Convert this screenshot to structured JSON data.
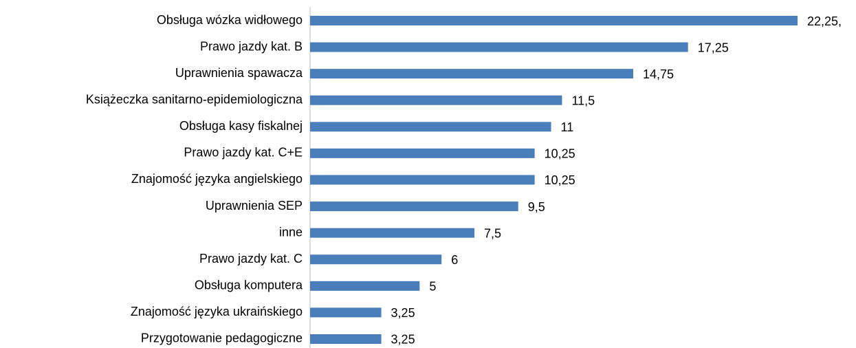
{
  "chart_data": {
    "type": "bar",
    "orientation": "horizontal",
    "categories": [
      "Obsługa wózka widłowego",
      "Prawo jazdy kat. B",
      "Uprawnienia spawacza",
      "Książeczka sanitarno-epidemiologiczna",
      "Obsługa kasy fiskalnej",
      "Prawo jazdy kat. C+E",
      "Znajomość języka angielskiego",
      "Uprawnienia SEP",
      "inne",
      "Prawo jazdy kat. C",
      "Obsługa komputera",
      "Znajomość języka ukraińskiego",
      "Przygotowanie pedagogiczne"
    ],
    "values": [
      22.25,
      17.25,
      14.75,
      11.5,
      11,
      10.25,
      10.25,
      9.5,
      7.5,
      6,
      5,
      3.25,
      3.25
    ],
    "value_labels": [
      "22,25,",
      "17,25",
      "14,75",
      "11,5",
      "11",
      "10,25",
      "10,25",
      "9,5",
      "7,5",
      "6",
      "5",
      "3,25",
      "3,25"
    ],
    "color": "#4a7ebb"
  }
}
